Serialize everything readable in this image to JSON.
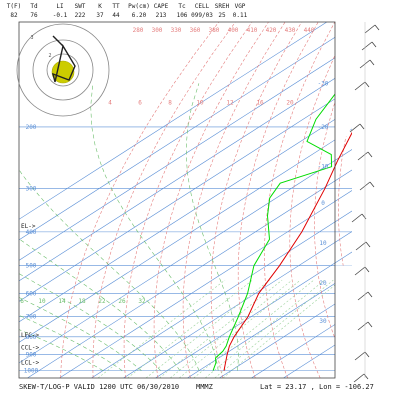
{
  "header": {
    "labels": [
      "T(F)",
      "Td",
      "LI",
      "SWT",
      "K",
      "TT",
      "Pw(cm)",
      "CAPE",
      "Tc",
      "CELL",
      "SREH",
      "VGP"
    ],
    "values": [
      "82",
      "76",
      "-0.1",
      "222",
      "37",
      "44",
      "6.20",
      "213",
      "106",
      "099/03",
      "25",
      "0.11"
    ]
  },
  "footer": {
    "title": "SKEW-T/LOG-P VALID 1200 UTC 06/30/2010    MMMZ",
    "lat_label": "Lat =",
    "lat_value": "23.17",
    "lon_label": "Lon =",
    "lon_value": "-106.27"
  },
  "chart_data": {
    "type": "line",
    "title": "SKEW-T/LOG-P VALID 1200 UTC 06/30/2010 MMMZ",
    "y_axis": "pressure (hPa), log scale",
    "ylim": [
      1050,
      100
    ],
    "pressure_levels": [
      1000,
      850,
      700,
      500,
      400,
      300,
      250,
      200,
      150,
      100
    ],
    "pressure_labels": [
      "1000",
      "900",
      "800",
      "700",
      "600",
      "500",
      "400",
      "300",
      "200"
    ],
    "temperature_labels": [
      "-30",
      "-20",
      "-10",
      "0",
      "10",
      "20",
      "30"
    ],
    "mixing_ratio_labels": [
      "6",
      "10",
      "14",
      "18",
      "22",
      "26",
      "32"
    ],
    "mixing_ratio_labels_lower": [
      "4",
      "6",
      "8",
      "10",
      "12",
      "16",
      "20"
    ],
    "theta_e_labels": [
      "280",
      "300",
      "330",
      "360",
      "380",
      "400",
      "410",
      "420",
      "430",
      "440"
    ],
    "levels_marked": [
      "EL->",
      "LFC->",
      "CCL->",
      "LCL->"
    ],
    "series": [
      {
        "name": "temperature",
        "color": "#e00000",
        "points": [
          {
            "p": 1000,
            "t": 27.8
          },
          {
            "p": 950,
            "t": 24.5
          },
          {
            "p": 900,
            "t": 21.0
          },
          {
            "p": 850,
            "t": 17.5
          },
          {
            "p": 800,
            "t": 14.5
          },
          {
            "p": 700,
            "t": 9.0
          },
          {
            "p": 600,
            "t": 1.0
          },
          {
            "p": 500,
            "t": -6.0
          },
          {
            "p": 400,
            "t": -15.5
          },
          {
            "p": 300,
            "t": -29.5
          },
          {
            "p": 250,
            "t": -39.0
          },
          {
            "p": 200,
            "t": -50.0
          },
          {
            "p": 150,
            "t": -62.0
          },
          {
            "p": 120,
            "t": -72.0
          },
          {
            "p": 100,
            "t": -76.0
          }
        ]
      },
      {
        "name": "dewpoint",
        "color": "#00dd00",
        "points": [
          {
            "p": 1000,
            "t": 24.4
          },
          {
            "p": 950,
            "t": 21.5
          },
          {
            "p": 920,
            "t": 19.0
          },
          {
            "p": 880,
            "t": 18.0
          },
          {
            "p": 850,
            "t": 16.5
          },
          {
            "p": 800,
            "t": 13.0
          },
          {
            "p": 700,
            "t": 6.0
          },
          {
            "p": 600,
            "t": -2.5
          },
          {
            "p": 500,
            "t": -14.0
          },
          {
            "p": 420,
            "t": -22.0
          },
          {
            "p": 360,
            "t": -34.0
          },
          {
            "p": 320,
            "t": -42.0
          },
          {
            "p": 290,
            "t": -46.0
          },
          {
            "p": 260,
            "t": -38.0
          },
          {
            "p": 240,
            "t": -44.0
          },
          {
            "p": 220,
            "t": -58.0
          },
          {
            "p": 190,
            "t": -66.0
          },
          {
            "p": 150,
            "t": -75.0
          },
          {
            "p": 120,
            "t": -82.0
          },
          {
            "p": 100,
            "t": -88.0
          }
        ]
      }
    ],
    "hodograph": {
      "rings": 3,
      "storm_marker_color": "#cccc00"
    },
    "colors": {
      "temperature": "#e00000",
      "dewpoint": "#00dd00",
      "isotherms": "#5a8fd6",
      "dry_adiabats": "#e47c7c",
      "moist_adiabats": "#6bbd6b",
      "mixing_ratio": "#9bd29b",
      "isobars": "#5a8fd6"
    }
  }
}
